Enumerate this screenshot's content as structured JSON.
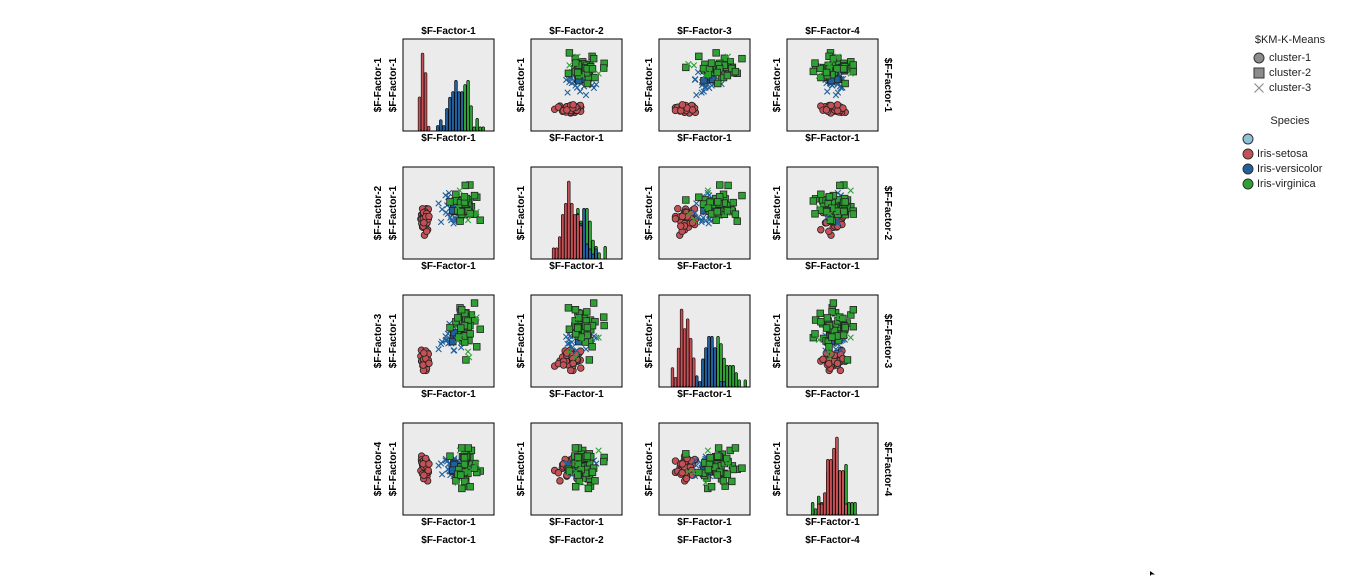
{
  "chart_data": {
    "type": "scatter-matrix",
    "variables": [
      "$F-Factor-1",
      "$F-Factor-2",
      "$F-Factor-3",
      "$F-Factor-4"
    ],
    "panel_title": "$F-Factor-1",
    "shape_legend": {
      "title": "$KM-K-Means",
      "items": [
        {
          "label": "cluster-1",
          "shape": "circle"
        },
        {
          "label": "cluster-2",
          "shape": "square"
        },
        {
          "label": "cluster-3",
          "shape": "cross"
        }
      ]
    },
    "color_legend": {
      "title": "Species",
      "items": [
        {
          "label": "",
          "color": "#8fc2d8"
        },
        {
          "label": "Iris-setosa",
          "color": "#c45155"
        },
        {
          "label": "Iris-versicolor",
          "color": "#21609c"
        },
        {
          "label": "Iris-virginica",
          "color": "#2fa033"
        }
      ]
    },
    "plot_background": "#ebebeb",
    "grid": false
  }
}
